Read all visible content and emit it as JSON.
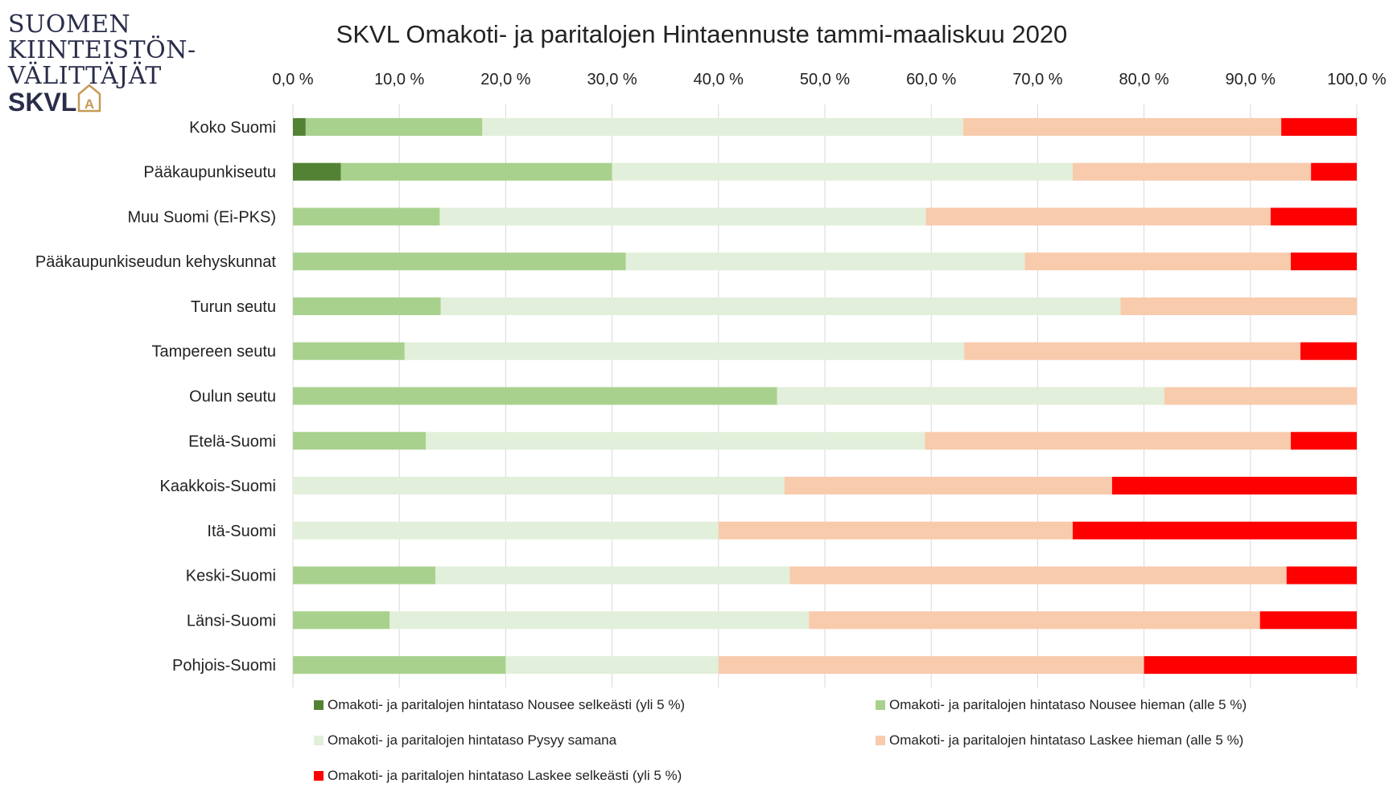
{
  "logo": {
    "lines": [
      "SUOMEN",
      "KIINTEISTÖN-",
      "VÄLITTÄJÄT"
    ],
    "brand": "SKVL",
    "brand_mark": "A"
  },
  "chart_data": {
    "type": "bar",
    "orientation": "horizontal",
    "stacked": "percent",
    "title": "SKVL Omakoti- ja paritalojen Hintaennuste tammi-maaliskuu 2020",
    "xlim": [
      0,
      100
    ],
    "xticks": [
      "0,0 %",
      "10,0 %",
      "20,0 %",
      "30,0 %",
      "40,0 %",
      "50,0 %",
      "60,0 %",
      "70,0 %",
      "80,0 %",
      "90,0 %",
      "100,0 %"
    ],
    "grid": true,
    "legend_position": "bottom",
    "categories": [
      "Koko Suomi",
      "Pääkaupunkiseutu",
      "Muu Suomi (Ei-PKS)",
      "Pääkaupunkiseudun kehyskunnat",
      "Turun seutu",
      "Tampereen seutu",
      "Oulun seutu",
      "Etelä-Suomi",
      "Kaakkois-Suomi",
      "Itä-Suomi",
      "Keski-Suomi",
      "Länsi-Suomi",
      "Pohjois-Suomi"
    ],
    "series": [
      {
        "name": "Omakoti- ja paritalojen hintataso Nousee selkeästi (yli 5 %)",
        "color": "#548235",
        "values": [
          1.2,
          4.5,
          0,
          0,
          0,
          0,
          0,
          0,
          0,
          0,
          0,
          0,
          0
        ]
      },
      {
        "name": "Omakoti- ja paritalojen hintataso Nousee hieman (alle 5 %)",
        "color": "#a9d18e",
        "values": [
          16.6,
          25.5,
          13.8,
          31.3,
          13.9,
          10.5,
          45.5,
          12.5,
          0,
          0,
          13.4,
          9.1,
          20.0
        ]
      },
      {
        "name": "Omakoti- ja paritalojen hintataso Pysyy samana",
        "color": "#e2efda",
        "values": [
          45.2,
          43.3,
          45.7,
          37.5,
          63.9,
          52.6,
          36.4,
          46.9,
          46.2,
          40.0,
          33.3,
          39.4,
          20.0
        ]
      },
      {
        "name": "Omakoti- ja paritalojen hintataso Laskee hieman (alle 5 %)",
        "color": "#f8cbad",
        "values": [
          29.9,
          22.4,
          32.4,
          25.0,
          22.2,
          31.6,
          18.1,
          34.4,
          30.8,
          33.3,
          46.7,
          42.4,
          40.0
        ]
      },
      {
        "name": "Omakoti- ja paritalojen hintataso Laskee selkeästi (yli 5 %)",
        "color": "#ff0000",
        "values": [
          7.1,
          4.3,
          8.1,
          6.2,
          0,
          5.3,
          0,
          6.2,
          23.0,
          26.7,
          6.6,
          9.1,
          20.0
        ]
      }
    ]
  }
}
